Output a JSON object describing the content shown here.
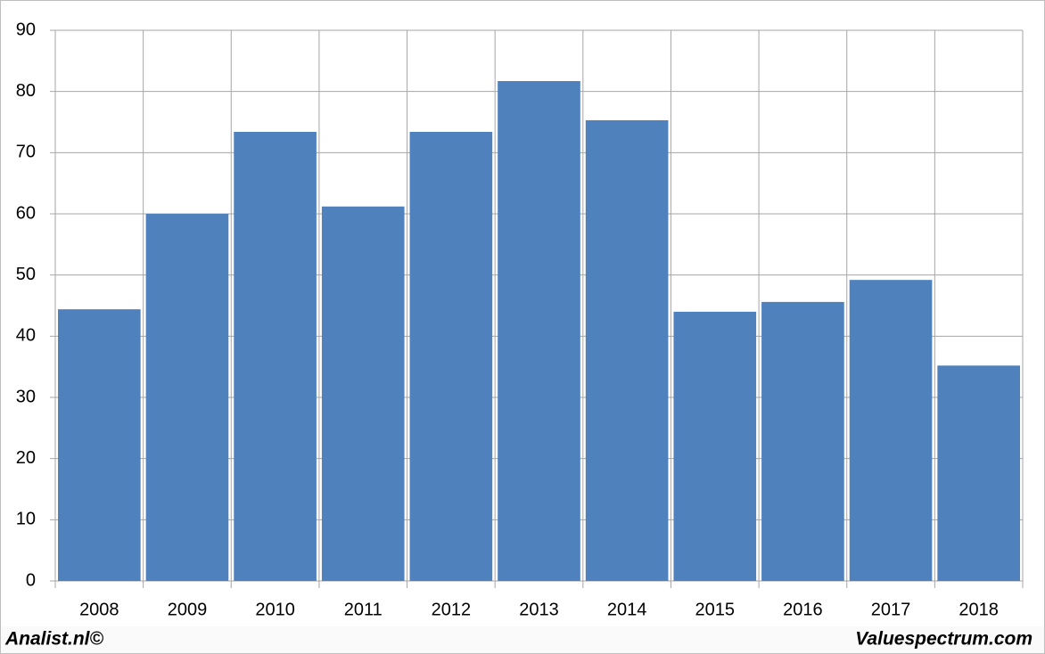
{
  "chart_data": {
    "type": "bar",
    "categories": [
      "2008",
      "2009",
      "2010",
      "2011",
      "2012",
      "2013",
      "2014",
      "2015",
      "2016",
      "2017",
      "2018"
    ],
    "values": [
      44.4,
      60.0,
      73.4,
      61.2,
      73.4,
      81.7,
      75.3,
      44.0,
      45.6,
      49.2,
      35.2
    ],
    "color": "#4f81bd",
    "ylim": [
      0,
      90
    ],
    "yticks": [
      0,
      10,
      20,
      30,
      40,
      50,
      60,
      70,
      80,
      90
    ],
    "grid": true
  },
  "footer": {
    "left": "Analist.nl©",
    "right": "Valuespectrum.com"
  }
}
